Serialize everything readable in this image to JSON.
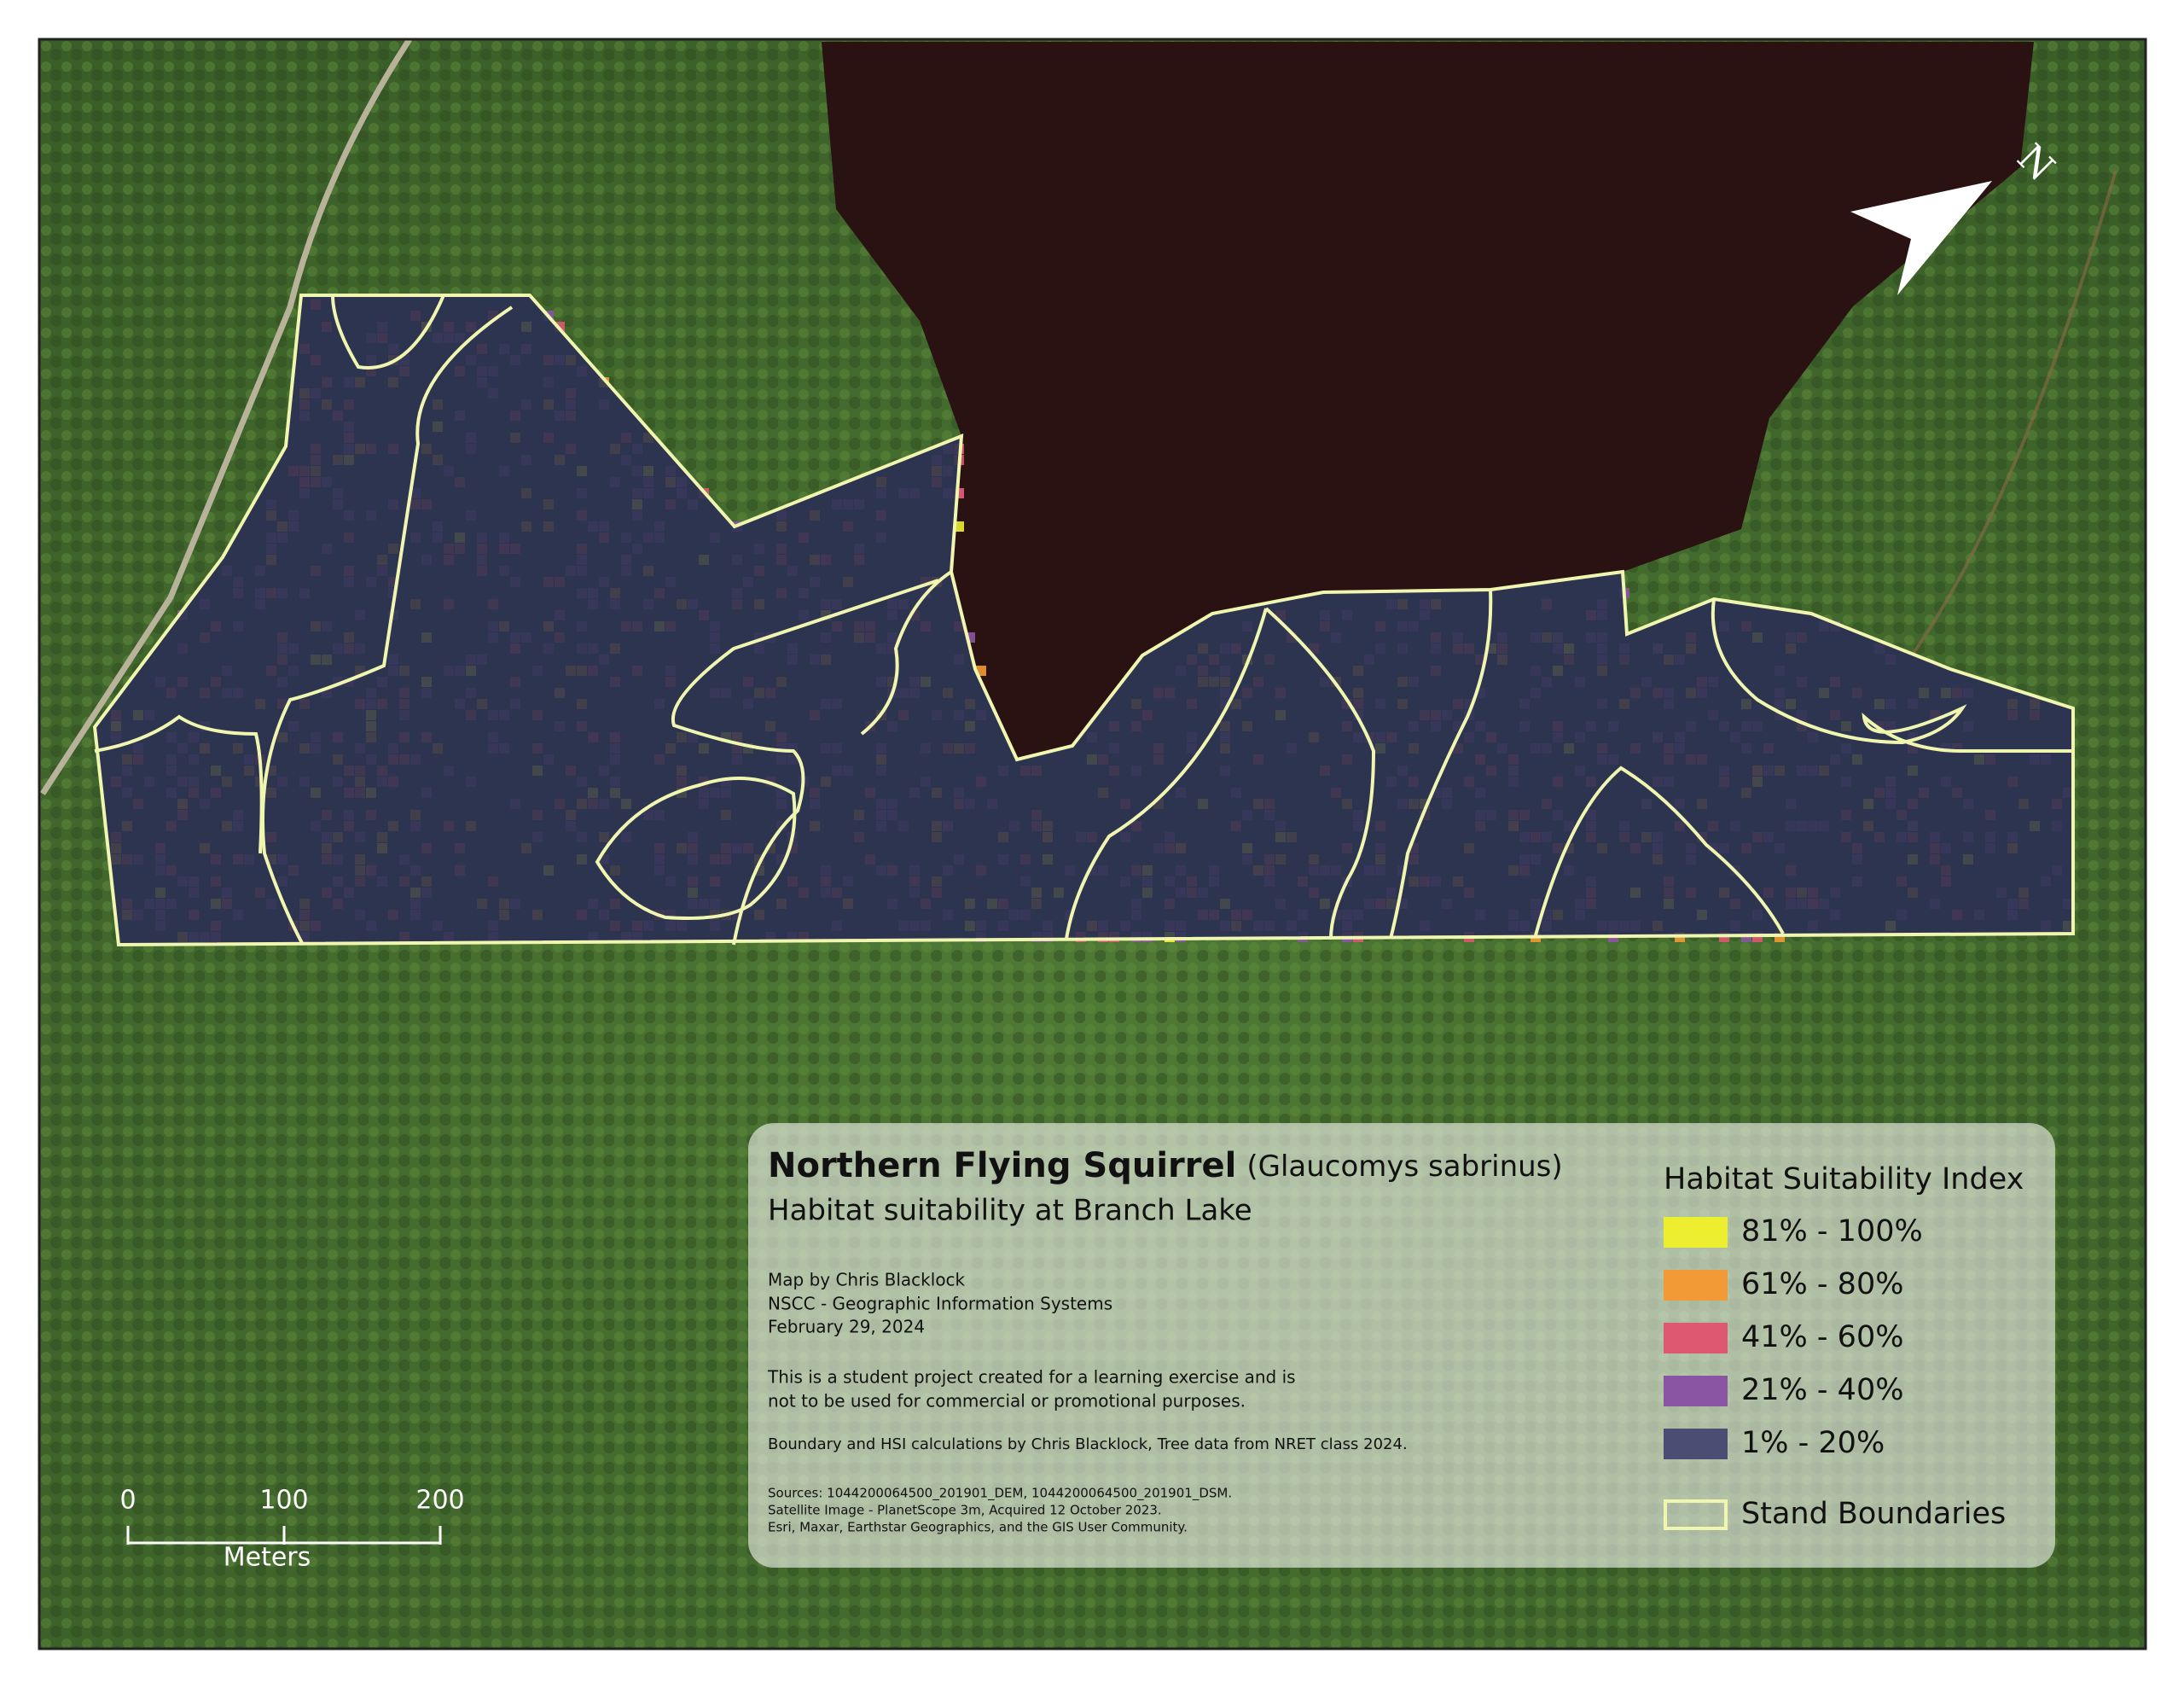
{
  "map": {
    "title": "Northern Flying Squirrel",
    "species": "(Glaucomys sabrinus)",
    "subtitle": "Habitat suitability at Branch Lake",
    "credits": [
      "Map by Chris Blacklock",
      "NSCC - Geographic Information Systems",
      "February 29, 2024"
    ],
    "disclaimer": [
      "This is a student project created for a learning exercise and is",
      "not to be used for commercial or promotional purposes."
    ],
    "boundary_note": "Boundary and HSI calculations by Chris Blacklock, Tree data from NRET class 2024.",
    "sources": [
      "Sources: 1044200064500_201901_DEM, 1044200064500_201901_DSM.",
      "Satellite Image - PlanetScope 3m, Acquired 12 October 2023.",
      "Esri, Maxar, Earthstar Geographics, and the GIS User Community."
    ],
    "legend": {
      "title": "Habitat Suitability Index",
      "items": [
        {
          "label": "81% - 100%",
          "color": "#eeee30"
        },
        {
          "label": "61% - 80%",
          "color": "#f29a35"
        },
        {
          "label": "41% - 60%",
          "color": "#dd5870"
        },
        {
          "label": "21% - 40%",
          "color": "#8a55a2"
        },
        {
          "label": "1% - 20%",
          "color": "#4a4e72"
        }
      ],
      "boundary_label": "Stand Boundaries",
      "boundary_color": "#f0f5b0"
    },
    "scale_bar": {
      "ticks": [
        0,
        100,
        200
      ],
      "unit": "Meters"
    },
    "north": "N"
  }
}
